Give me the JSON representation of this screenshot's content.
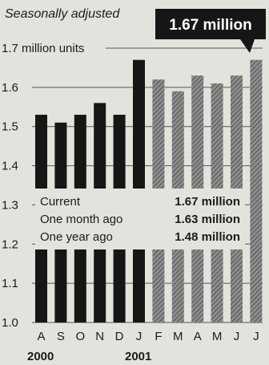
{
  "chart_data": {
    "type": "bar",
    "subtitle": "Seasonally adjusted",
    "unit_label": "1.7 million units",
    "callout": "1.67 million",
    "categories": [
      "A",
      "S",
      "O",
      "N",
      "D",
      "J",
      "F",
      "M",
      "A",
      "M",
      "J",
      "J"
    ],
    "year_labels": [
      {
        "text": "2000",
        "category_index": 0
      },
      {
        "text": "2001",
        "category_index": 5
      }
    ],
    "values": [
      1.53,
      1.51,
      1.53,
      1.56,
      1.53,
      1.67,
      1.62,
      1.59,
      1.63,
      1.61,
      1.63,
      1.67
    ],
    "ylim": [
      1.0,
      1.7
    ],
    "yticks": [
      {
        "value": 1.7,
        "label": "1.7 million units"
      },
      {
        "value": 1.6,
        "label": "1.6"
      },
      {
        "value": 1.5,
        "label": "1.5"
      },
      {
        "value": 1.4,
        "label": "1.4"
      },
      {
        "value": 1.3,
        "label": "1.3"
      },
      {
        "value": 1.2,
        "label": "1.2"
      },
      {
        "value": 1.1,
        "label": "1.1"
      },
      {
        "value": 1.0,
        "label": "1.0"
      }
    ],
    "grid": true,
    "solid_bar_count": 6,
    "colors": {
      "solid_bar": "#161616",
      "hatched_bar": "#8d8d8d",
      "hatch_line": "#3c3c3c",
      "callout_bg": "#161616",
      "background": "#e4e2dc",
      "grid": "#555555"
    },
    "stats": [
      {
        "label": "Current",
        "value": "1.67 million"
      },
      {
        "label": "One month ago",
        "value": "1.63 million"
      },
      {
        "label": "One year ago",
        "value": "1.48 million"
      }
    ]
  }
}
